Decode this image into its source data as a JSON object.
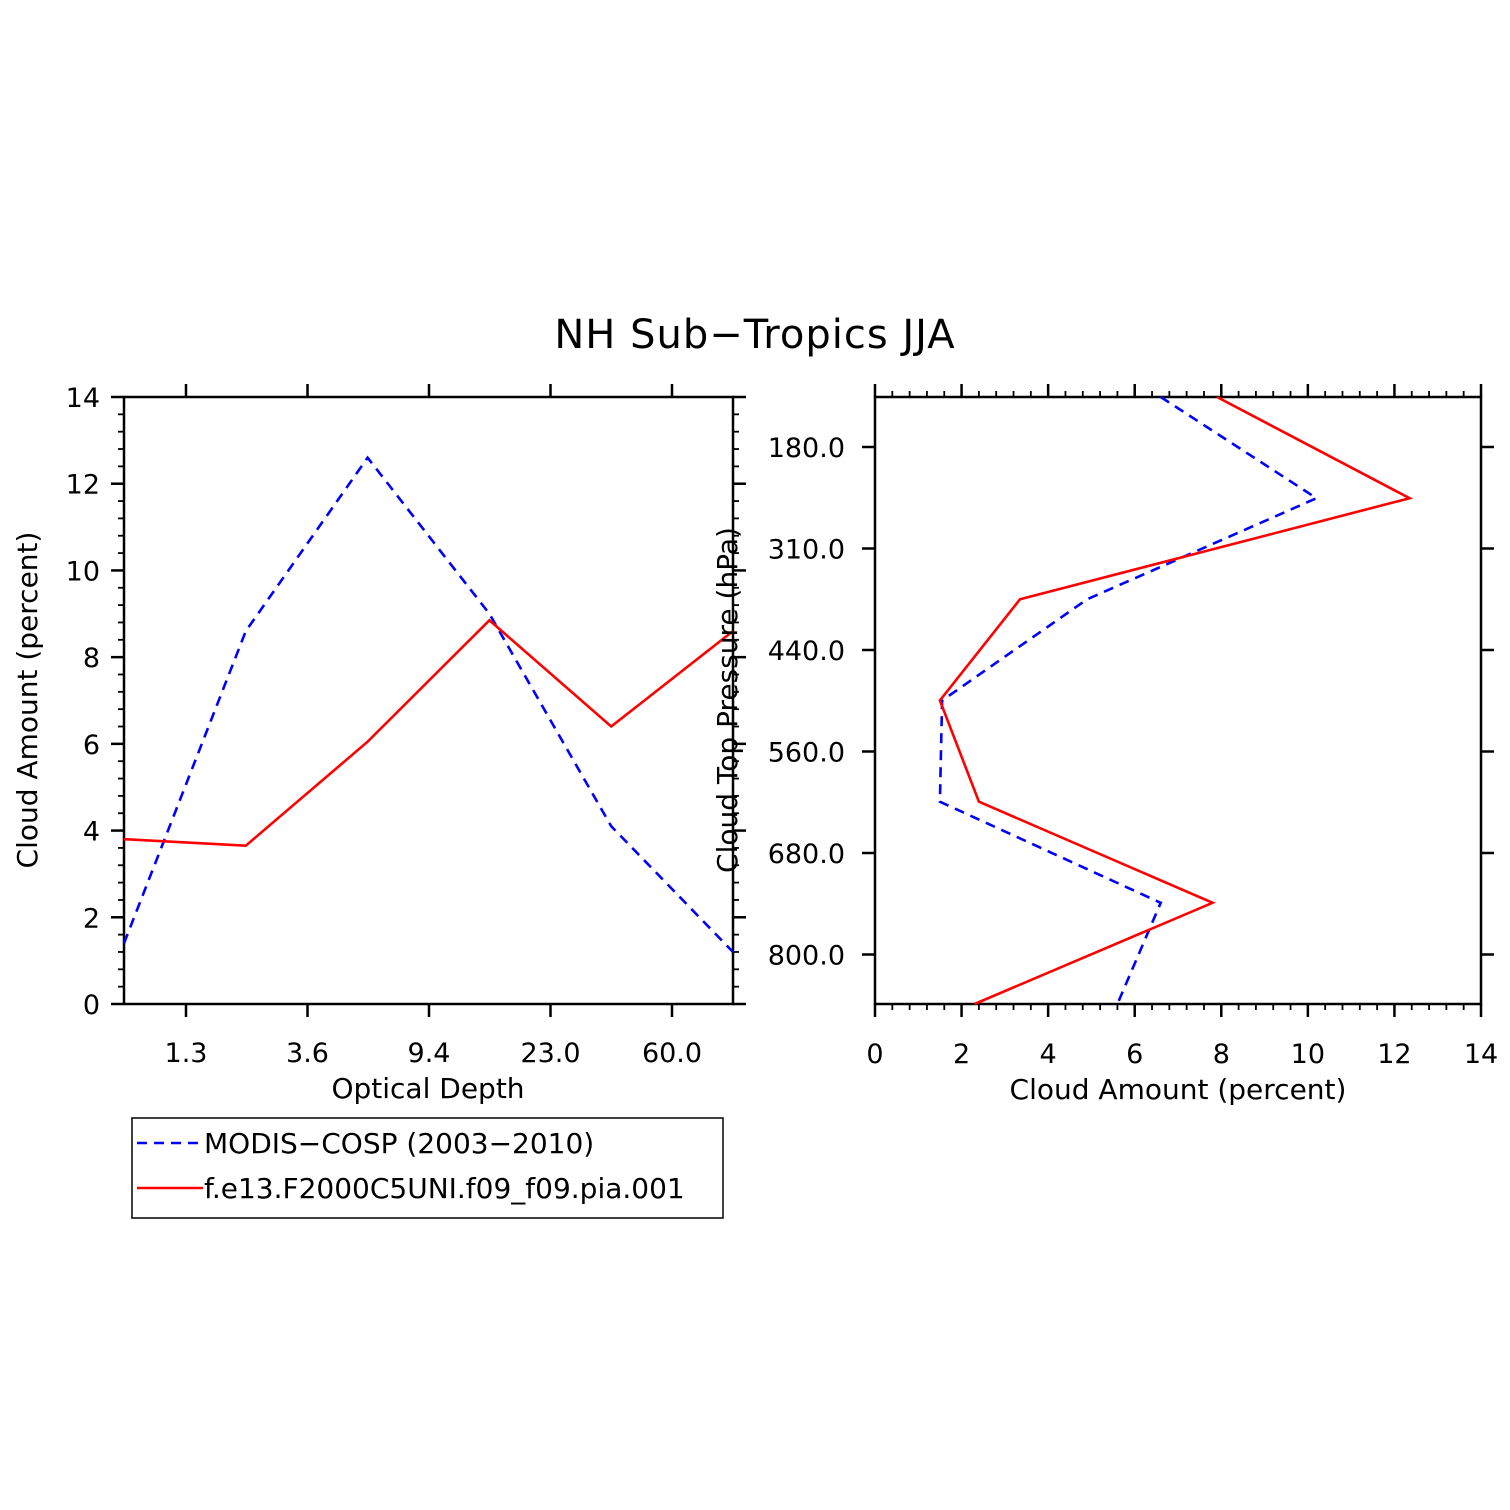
{
  "title": "NH Sub−Tropics JJA",
  "colors": {
    "modis": "#0000ff",
    "model": "#ff0000"
  },
  "legend": {
    "position": "below-left",
    "entries": [
      {
        "label": "MODIS−COSP (2003−2010)",
        "color": "#0000ff",
        "dash": "dashed"
      },
      {
        "label": "f.e13.F2000C5UNI.f09_f09.pia.001",
        "color": "#ff0000",
        "dash": "solid"
      }
    ]
  },
  "chart_data": [
    {
      "type": "line",
      "xlabel": "Optical Depth",
      "ylabel": "Cloud Amount (percent)",
      "x_tick_labels": [
        "1.3",
        "3.6",
        "9.4",
        "23.0",
        "60.0"
      ],
      "y_tick_labels": [
        "0",
        "2",
        "4",
        "6",
        "8",
        "10",
        "12",
        "14"
      ],
      "ylim": [
        0,
        14
      ],
      "grid": false,
      "series": [
        {
          "name": "MODIS−COSP (2003−2010)",
          "values": [
            1.4,
            8.6,
            12.6,
            9.0,
            4.1,
            1.2
          ]
        },
        {
          "name": "f.e13.F2000C5UNI.f09_f09.pia.001",
          "values": [
            3.8,
            3.65,
            6.05,
            8.85,
            6.4,
            8.6
          ]
        }
      ]
    },
    {
      "type": "line",
      "xlabel": "Cloud Amount (percent)",
      "ylabel": "Cloud Top Pressure (hPa)",
      "x_tick_labels": [
        "0",
        "2",
        "4",
        "6",
        "8",
        "10",
        "12",
        "14"
      ],
      "y_tick_labels": [
        "180.0",
        "310.0",
        "440.0",
        "560.0",
        "680.0",
        "800.0"
      ],
      "xlim": [
        0,
        14
      ],
      "grid": false,
      "series": [
        {
          "name": "MODIS−COSP (2003−2010)",
          "values": [
            6.6,
            10.2,
            4.9,
            1.55,
            1.5,
            6.6,
            5.6
          ]
        },
        {
          "name": "f.e13.F2000C5UNI.f09_f09.pia.001",
          "values": [
            7.9,
            12.35,
            3.35,
            1.5,
            2.4,
            7.8,
            2.3
          ]
        }
      ]
    }
  ]
}
